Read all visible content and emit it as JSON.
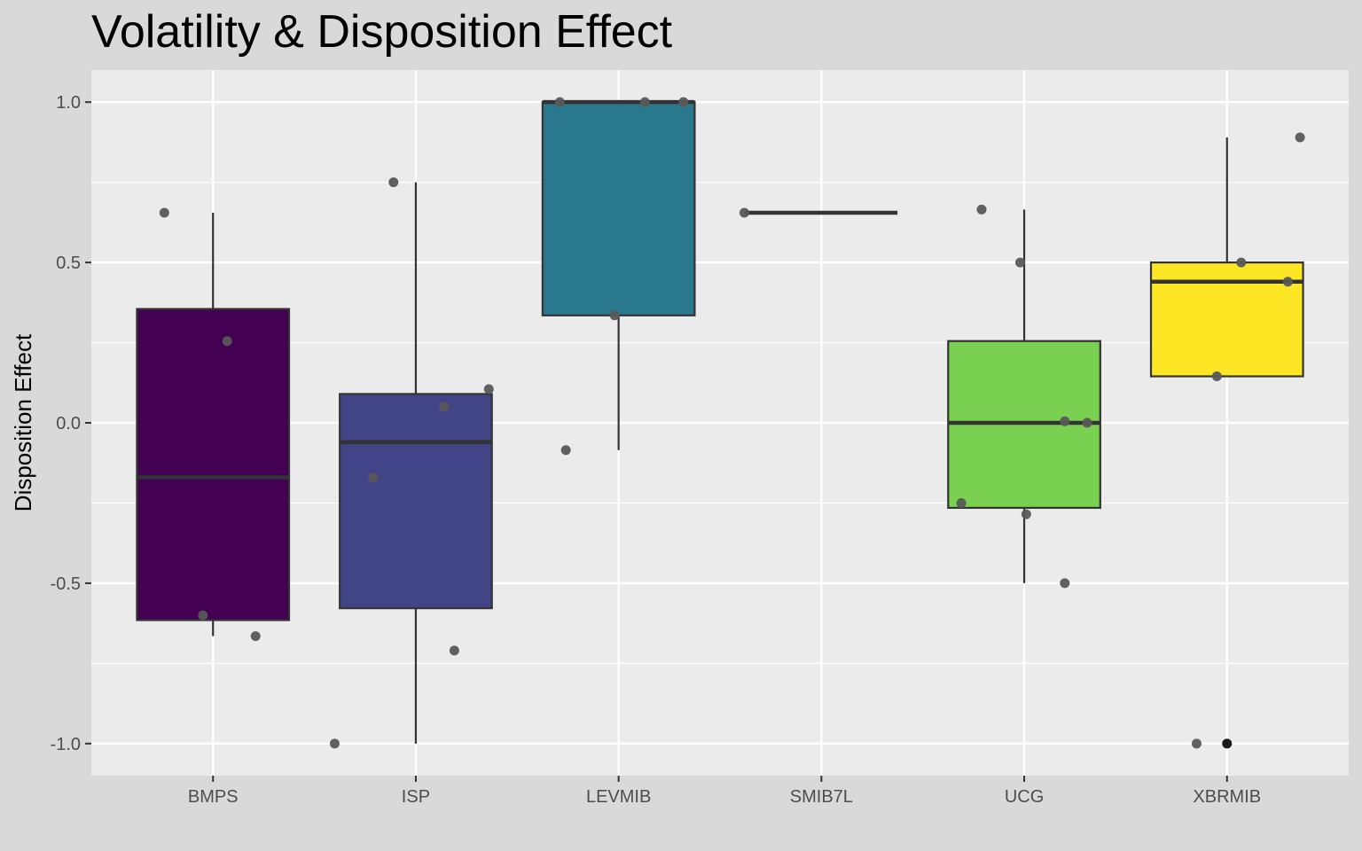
{
  "chart_data": {
    "type": "box",
    "title": "Volatility & Disposition Effect",
    "xlabel": "",
    "ylabel": "Disposition Effect",
    "ylim": [
      -1.1,
      1.1
    ],
    "yticks": [
      -1.0,
      -0.5,
      0.0,
      0.5,
      1.0
    ],
    "ytick_labels": [
      "-1.0",
      "-0.5",
      "0.0",
      "0.5",
      "1.0"
    ],
    "grid": true,
    "legend": "none",
    "categories": [
      "BMPS",
      "ISP",
      "LEVMIB",
      "SMIB7L",
      "UCG",
      "XBRMIB"
    ],
    "boxes": [
      {
        "category": "BMPS",
        "color": "#440154",
        "q1": -0.615,
        "median": -0.17,
        "q3": 0.355,
        "whisker_low": -0.665,
        "whisker_high": 0.655,
        "outliers": []
      },
      {
        "category": "ISP",
        "color": "#414487",
        "q1": -0.578,
        "median": -0.06,
        "q3": 0.09,
        "whisker_low": -1.0,
        "whisker_high": 0.75,
        "outliers": []
      },
      {
        "category": "LEVMIB",
        "color": "#2a788e",
        "q1": 0.335,
        "median": 1.0,
        "q3": 1.0,
        "whisker_low": -0.085,
        "whisker_high": 1.0,
        "outliers": []
      },
      {
        "category": "SMIB7L",
        "color": "#22a884",
        "q1": 0.655,
        "median": 0.655,
        "q3": 0.655,
        "whisker_low": 0.655,
        "whisker_high": 0.655,
        "outliers": []
      },
      {
        "category": "UCG",
        "color": "#7ad151",
        "q1": -0.265,
        "median": 0.0,
        "q3": 0.255,
        "whisker_low": -0.5,
        "whisker_high": 0.665,
        "outliers": []
      },
      {
        "category": "XBRMIB",
        "color": "#fde725",
        "q1": 0.145,
        "median": 0.44,
        "q3": 0.5,
        "whisker_low": 0.145,
        "whisker_high": 0.89,
        "outliers": [
          -1.0
        ]
      }
    ],
    "points": [
      {
        "category": "BMPS",
        "x_jitter": -0.24,
        "y": 0.655
      },
      {
        "category": "BMPS",
        "x_jitter": 0.07,
        "y": 0.255
      },
      {
        "category": "BMPS",
        "x_jitter": -0.05,
        "y": -0.6
      },
      {
        "category": "BMPS",
        "x_jitter": 0.21,
        "y": -0.665
      },
      {
        "category": "ISP",
        "x_jitter": -0.11,
        "y": 0.75
      },
      {
        "category": "ISP",
        "x_jitter": 0.36,
        "y": 0.105
      },
      {
        "category": "ISP",
        "x_jitter": 0.14,
        "y": 0.05
      },
      {
        "category": "ISP",
        "x_jitter": -0.21,
        "y": -0.17
      },
      {
        "category": "ISP",
        "x_jitter": 0.19,
        "y": -0.71
      },
      {
        "category": "ISP",
        "x_jitter": -0.4,
        "y": -1.0
      },
      {
        "category": "LEVMIB",
        "x_jitter": -0.29,
        "y": 1.0
      },
      {
        "category": "LEVMIB",
        "x_jitter": 0.13,
        "y": 1.0
      },
      {
        "category": "LEVMIB",
        "x_jitter": 0.32,
        "y": 1.0
      },
      {
        "category": "LEVMIB",
        "x_jitter": -0.02,
        "y": 0.335
      },
      {
        "category": "LEVMIB",
        "x_jitter": -0.26,
        "y": -0.085
      },
      {
        "category": "SMIB7L",
        "x_jitter": -0.38,
        "y": 0.655
      },
      {
        "category": "UCG",
        "x_jitter": -0.21,
        "y": 0.665
      },
      {
        "category": "UCG",
        "x_jitter": -0.02,
        "y": 0.5
      },
      {
        "category": "UCG",
        "x_jitter": 0.2,
        "y": 0.005
      },
      {
        "category": "UCG",
        "x_jitter": 0.31,
        "y": 0.0
      },
      {
        "category": "UCG",
        "x_jitter": -0.31,
        "y": -0.25
      },
      {
        "category": "UCG",
        "x_jitter": 0.01,
        "y": -0.285
      },
      {
        "category": "UCG",
        "x_jitter": 0.2,
        "y": -0.5
      },
      {
        "category": "XBRMIB",
        "x_jitter": 0.36,
        "y": 0.89
      },
      {
        "category": "XBRMIB",
        "x_jitter": 0.07,
        "y": 0.5
      },
      {
        "category": "XBRMIB",
        "x_jitter": 0.3,
        "y": 0.44
      },
      {
        "category": "XBRMIB",
        "x_jitter": -0.05,
        "y": 0.145
      },
      {
        "category": "XBRMIB",
        "x_jitter": -0.15,
        "y": -1.0
      }
    ],
    "colors": {
      "page_background": "#d9d9d9",
      "panel_background": "#ebebeb",
      "grid": "#ffffff",
      "box_outline": "#333333",
      "points": "#595959"
    }
  }
}
